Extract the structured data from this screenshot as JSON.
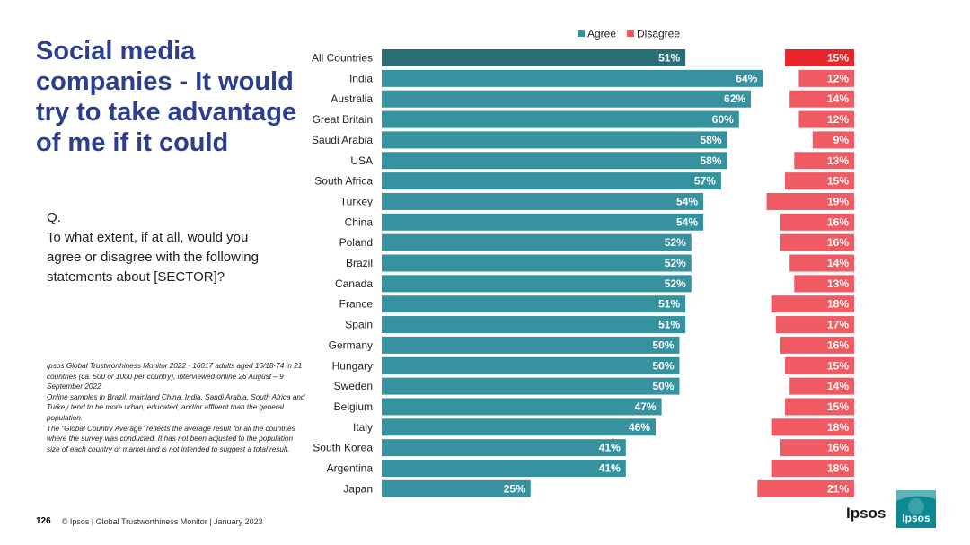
{
  "title": "Social media companies - It would try to take advantage of me if it could",
  "question": {
    "q_label": "Q.",
    "text": "To what extent, if at all, would you agree or disagree with the following statements about [SECTOR]?"
  },
  "source_notes": {
    "line1": "Ipsos Global Trustworthiness Monitor 2022 - 16017 adults aged 16/18-74 in 21 countries (ca. 500 or 1000 per country), interviewed online 26 August – 9 September 2022",
    "line2": "Online samples in Brazil, mainland China, India, Saudi Arabia, South Africa and Turkey tend to be more urban, educated, and/or affluent than the general population.",
    "line3": "The “Global Country Average” reflects the average result for all the countries where the survey was conducted. It has not been adjusted to the population size of each country or market and is not intended to suggest a total result."
  },
  "footer": {
    "page_number": "126",
    "copyright": "© Ipsos | Global Trustworthiness Monitor | January 2023"
  },
  "brand": {
    "wordmark": "Ipsos",
    "logo_text": "Ipsos"
  },
  "colors": {
    "agree": "#35929e",
    "agree_highlight": "#2a6f77",
    "disagree": "#f05a62",
    "disagree_highlight": "#e8252c",
    "title": "#2b3e8f"
  },
  "chart_data": {
    "type": "bar",
    "orientation": "horizontal",
    "legend": [
      "Agree",
      "Disagree"
    ],
    "categories": [
      "All Countries",
      "India",
      "Australia",
      "Great Britain",
      "Saudi Arabia",
      "USA",
      "South Africa",
      "Turkey",
      "China",
      "Poland",
      "Brazil",
      "Canada",
      "France",
      "Spain",
      "Germany",
      "Hungary",
      "Sweden",
      "Belgium",
      "Italy",
      "South Korea",
      "Argentina",
      "Japan"
    ],
    "series": [
      {
        "name": "Agree",
        "values": [
          51,
          64,
          62,
          60,
          58,
          58,
          57,
          54,
          54,
          52,
          52,
          52,
          51,
          51,
          50,
          50,
          50,
          47,
          46,
          41,
          41,
          25
        ]
      },
      {
        "name": "Disagree",
        "values": [
          15,
          12,
          14,
          12,
          9,
          13,
          15,
          19,
          16,
          16,
          14,
          13,
          18,
          17,
          16,
          15,
          14,
          15,
          18,
          16,
          18,
          21
        ]
      }
    ],
    "value_suffix": "%"
  }
}
